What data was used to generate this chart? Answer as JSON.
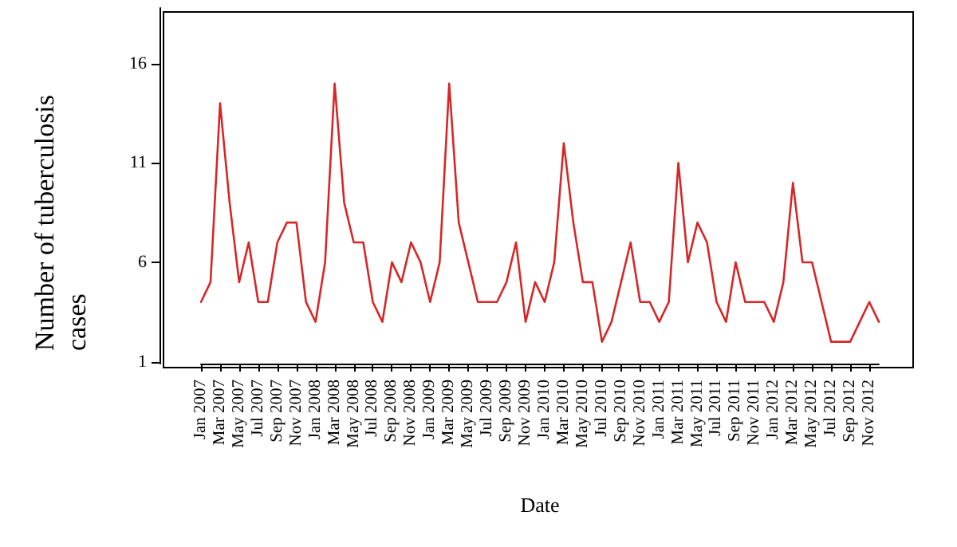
{
  "chart_data": {
    "type": "line",
    "xlabel": "Date",
    "ylabel": "Number of tuberculosis cases",
    "categories": [
      "Jan 2007",
      null,
      "Mar 2007",
      null,
      "May 2007",
      null,
      "Jul 2007",
      null,
      "Sep 2007",
      null,
      "Nov 2007",
      null,
      "Jan 2008",
      null,
      "Mar 2008",
      null,
      "May 2008",
      null,
      "Jul 2008",
      null,
      "Sep 2008",
      null,
      "Nov 2008",
      null,
      "Jan 2009",
      null,
      "Mar 2009",
      null,
      "May 2009",
      null,
      "Jul 2009",
      null,
      "Sep 2009",
      null,
      "Nov 2009",
      null,
      "Jan 2010",
      null,
      "Mar 2010",
      null,
      "May 2010",
      null,
      "Jul 2010",
      null,
      "Sep 2010",
      null,
      "Nov 2010",
      null,
      "Jan 2011",
      null,
      "Mar 2011",
      null,
      "May 2011",
      null,
      "Jul 2011",
      null,
      "Sep 2011",
      null,
      "Nov 2011",
      null,
      "Jan 2012",
      null,
      "Mar 2012",
      null,
      "May 2012",
      null,
      "Jul 2012",
      null,
      "Sep 2012",
      null,
      "Nov 2012",
      null
    ],
    "series": [
      {
        "color": "#d62728",
        "values": [
          4,
          5,
          14,
          9,
          5,
          7,
          4,
          4,
          7,
          8,
          8,
          4,
          3,
          6,
          15,
          9,
          7,
          7,
          4,
          3,
          6,
          5,
          7,
          6,
          4,
          6,
          15,
          8,
          6,
          4,
          4,
          4,
          5,
          7,
          3,
          5,
          4,
          6,
          12,
          8,
          5,
          5,
          2,
          3,
          5,
          7,
          4,
          4,
          3,
          4,
          11,
          6,
          8,
          7,
          4,
          3,
          6,
          4,
          4,
          4,
          3,
          5,
          10,
          6,
          6,
          4,
          2,
          2,
          2,
          3,
          4,
          3
        ]
      }
    ],
    "ylim": [
      0.9,
      18.8
    ],
    "yticks": [
      1,
      6,
      11,
      16
    ],
    "grid": false,
    "marker": "none",
    "line_style": "solid"
  }
}
